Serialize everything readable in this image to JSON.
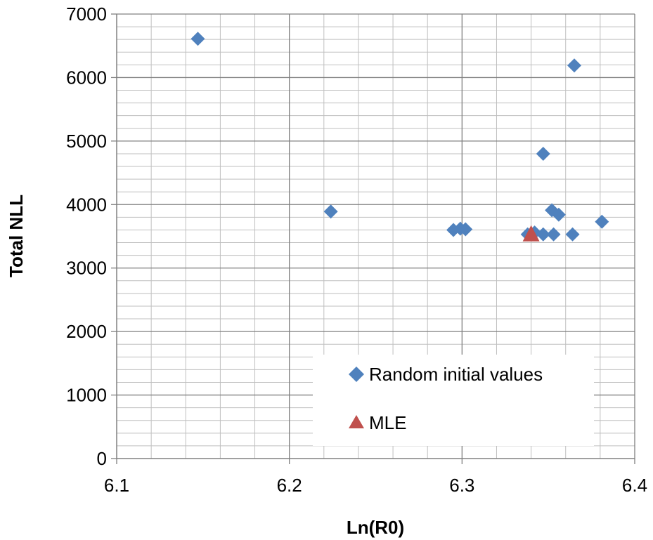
{
  "chart_data": {
    "type": "scatter",
    "xlabel": "Ln(R0)",
    "ylabel": "Total NLL",
    "xlim": [
      6.1,
      6.4
    ],
    "ylim": [
      0,
      7000
    ],
    "x_major_ticks": [
      "6.1",
      "6.2",
      "6.3",
      "6.4"
    ],
    "y_major_ticks": [
      "0",
      "1000",
      "2000",
      "3000",
      "4000",
      "5000",
      "6000",
      "7000"
    ],
    "grid": "major and minor",
    "legend_position": "bottom-right",
    "series": [
      {
        "name": "Random initial values",
        "marker": "diamond",
        "color": "#4F81BD",
        "points": [
          {
            "x": 6.147,
            "y": 6610
          },
          {
            "x": 6.365,
            "y": 6190
          },
          {
            "x": 6.347,
            "y": 4800
          },
          {
            "x": 6.224,
            "y": 3890
          },
          {
            "x": 6.352,
            "y": 3910
          },
          {
            "x": 6.356,
            "y": 3840
          },
          {
            "x": 6.381,
            "y": 3730
          },
          {
            "x": 6.295,
            "y": 3600
          },
          {
            "x": 6.299,
            "y": 3620
          },
          {
            "x": 6.302,
            "y": 3610
          },
          {
            "x": 6.338,
            "y": 3530
          },
          {
            "x": 6.342,
            "y": 3560
          },
          {
            "x": 6.347,
            "y": 3530
          },
          {
            "x": 6.353,
            "y": 3530
          },
          {
            "x": 6.364,
            "y": 3530
          }
        ]
      },
      {
        "name": "MLE",
        "marker": "triangle",
        "color": "#C0504D",
        "points": [
          {
            "x": 6.34,
            "y": 3520
          }
        ]
      }
    ]
  }
}
